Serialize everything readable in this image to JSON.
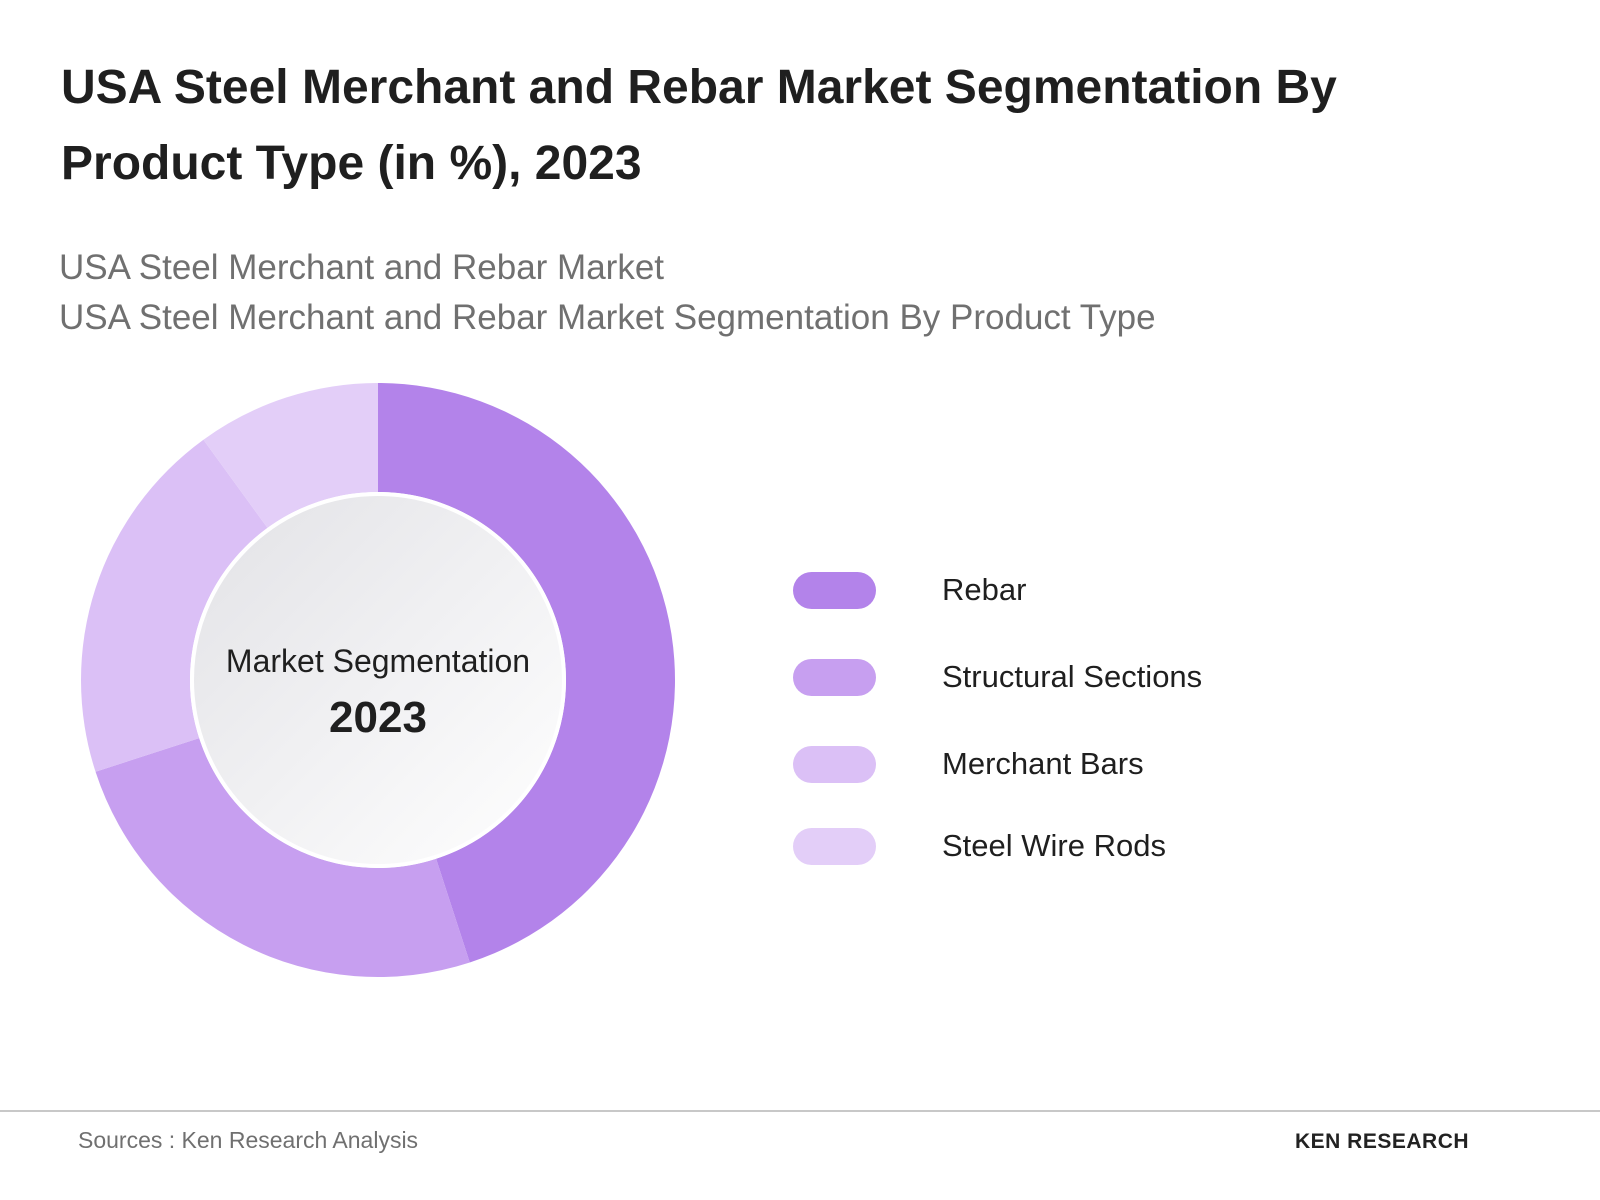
{
  "chart_data": {
    "type": "donut",
    "title": "USA Steel Merchant and Rebar Market Segmentation By Product Type (in %), 2023",
    "subtitles": [
      "USA Steel Merchant and Rebar Market",
      "USA Steel Merchant and Rebar Market Segmentation By Product Type"
    ],
    "center_label": "Market Segmentation",
    "center_value": "2023",
    "categories": [
      "Rebar",
      "Structural Sections",
      "Merchant Bars",
      "Steel Wire Rods"
    ],
    "values": [
      45,
      25,
      20,
      10
    ],
    "colors": [
      "#b383ea",
      "#c79ff0",
      "#dbc0f6",
      "#e3cef8"
    ]
  },
  "footer": {
    "source": "Sources : Ken Research Analysis",
    "logo": "KEN RESEARCH"
  }
}
